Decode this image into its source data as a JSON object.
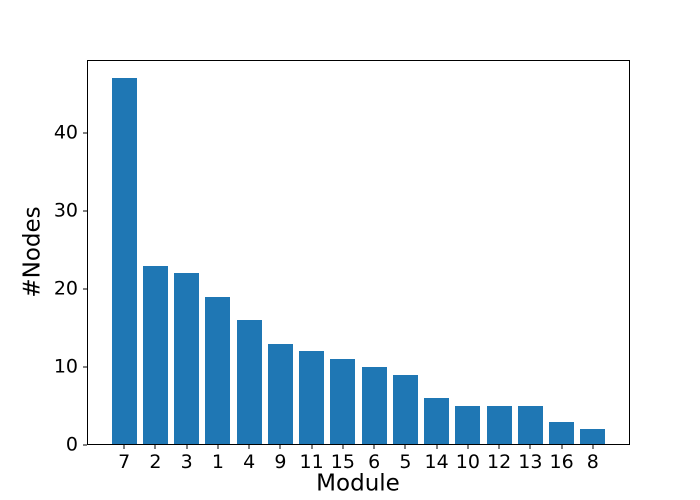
{
  "chart_data": {
    "type": "bar",
    "title": "",
    "xlabel": "Module",
    "ylabel": "#Nodes",
    "categories": [
      "7",
      "2",
      "3",
      "1",
      "4",
      "9",
      "11",
      "15",
      "6",
      "5",
      "14",
      "10",
      "12",
      "13",
      "16",
      "8"
    ],
    "values": [
      47,
      23,
      22,
      19,
      16,
      13,
      12,
      11,
      10,
      9,
      6,
      5,
      5,
      5,
      3,
      2
    ],
    "yticks": [
      0,
      10,
      20,
      30,
      40
    ],
    "ylim": [
      0,
      49.35
    ],
    "xlim": [
      -1.19,
      16.19
    ],
    "bar_width": 0.8,
    "bar_color": "#1f77b4",
    "axis_color": "#000000",
    "background_color": "#ffffff",
    "grid": false,
    "legend": null
  }
}
